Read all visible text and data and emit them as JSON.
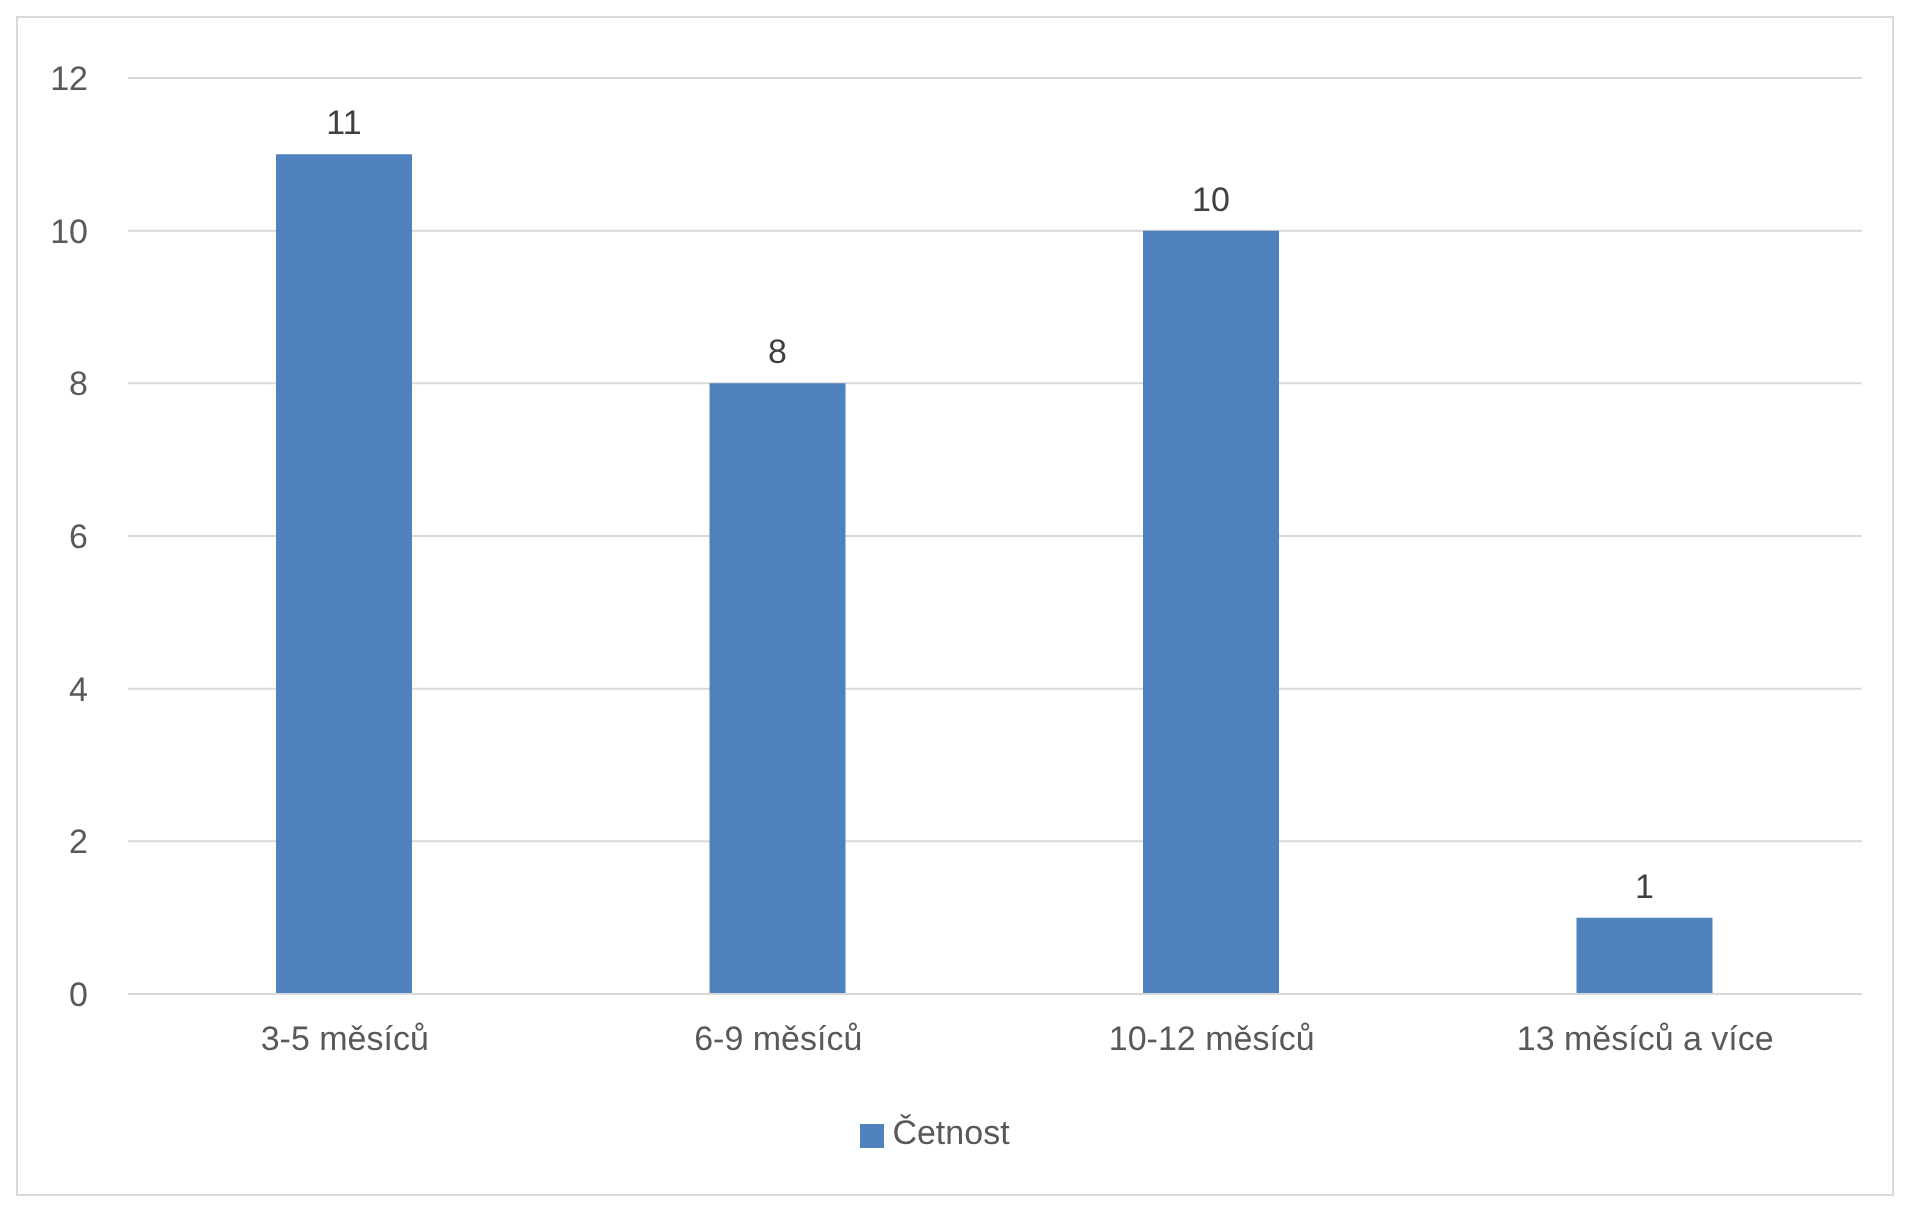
{
  "chart_data": {
    "type": "bar",
    "categories": [
      "3-5 měsíců",
      "6-9 měsíců",
      "10-12 měsíců",
      "13 měsíců a více"
    ],
    "series": [
      {
        "name": "Četnost",
        "color": "#4f81bd",
        "values": [
          11,
          8,
          10,
          1
        ]
      }
    ],
    "ylim": [
      0,
      12
    ],
    "yticks": [
      0,
      2,
      4,
      6,
      8,
      10,
      12
    ],
    "grid": "y",
    "legend": "bottom",
    "data_labels": true
  }
}
